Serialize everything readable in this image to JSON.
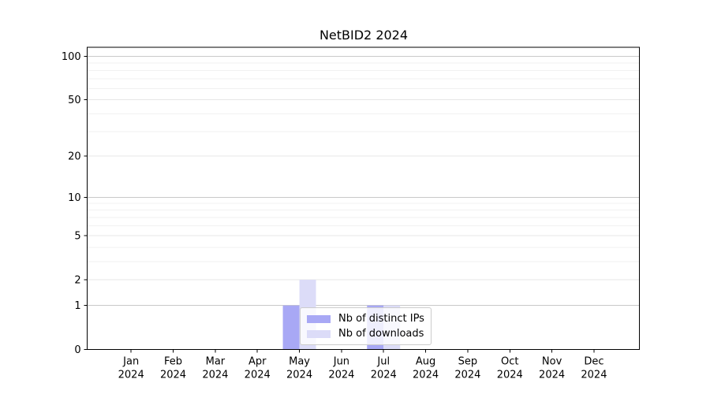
{
  "chart_data": {
    "type": "bar",
    "title": "NetBID2 2024",
    "x_tick_labels": [
      [
        "Jan",
        "2024"
      ],
      [
        "Feb",
        "2024"
      ],
      [
        "Mar",
        "2024"
      ],
      [
        "Apr",
        "2024"
      ],
      [
        "May",
        "2024"
      ],
      [
        "Jun",
        "2024"
      ],
      [
        "Jul",
        "2024"
      ],
      [
        "Aug",
        "2024"
      ],
      [
        "Sep",
        "2024"
      ],
      [
        "Oct",
        "2024"
      ],
      [
        "Nov",
        "2024"
      ],
      [
        "Dec",
        "2024"
      ]
    ],
    "y_tick_values": [
      0,
      1,
      2,
      5,
      10,
      20,
      50,
      100
    ],
    "y_scale": "log10(1+y)",
    "ylim": [
      0,
      113
    ],
    "grid": true,
    "y_gridlines_strong": [
      1,
      10,
      100
    ],
    "y_gridlines_labeled": [
      2,
      5,
      20,
      50
    ],
    "y_gridlines_minor": [
      3,
      4,
      6,
      7,
      8,
      9,
      30,
      40,
      60,
      70,
      80,
      90
    ],
    "series": [
      {
        "name": "Nb of distinct IPs",
        "color": "#a8a8f5",
        "values": [
          0,
          0,
          0,
          0,
          1,
          0,
          1,
          0,
          0,
          0,
          0,
          0
        ]
      },
      {
        "name": "Nb of downloads",
        "color": "#dcdcf8",
        "values": [
          0,
          0,
          0,
          0,
          2,
          0,
          1,
          0,
          0,
          0,
          0,
          0
        ]
      }
    ],
    "legend_position": "inside axes, lower middle"
  },
  "colors": {
    "axis": "#000000",
    "tick_label": "#000000",
    "grid_strong": "#c9c9c9",
    "grid_labeled": "#e7e7e7",
    "grid_minor": "#f1f1f1",
    "background": "#ffffff",
    "legend_border": "#cccccc"
  }
}
